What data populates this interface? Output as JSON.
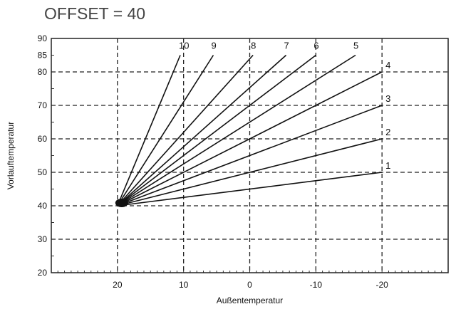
{
  "chart_data": {
    "type": "line",
    "title": "OFFSET = 40",
    "xlabel": "Außentemperatur",
    "ylabel": "Vorlauftemperatur",
    "x_reversed": true,
    "xlim": [
      30,
      -30
    ],
    "ylim": [
      20,
      90
    ],
    "x_ticks": [
      20,
      10,
      0,
      -10,
      -20
    ],
    "x_tick_labels": [
      "20",
      "10",
      "0",
      "-10",
      "-20"
    ],
    "y_ticks": [
      20,
      30,
      40,
      50,
      60,
      70,
      80,
      85,
      90
    ],
    "y_tick_labels": [
      "20",
      "30",
      "40",
      "50",
      "60",
      "70",
      "80",
      "85",
      "90"
    ],
    "grid": "dashed at x = 20, 10, 0, -10, -20 and y = 30, 40, 50, 60, 70, 80",
    "series": [
      {
        "name": "1",
        "x": [
          20,
          -20
        ],
        "y": [
          40,
          50
        ]
      },
      {
        "name": "2",
        "x": [
          20,
          -20
        ],
        "y": [
          40,
          60
        ]
      },
      {
        "name": "3",
        "x": [
          20,
          -20
        ],
        "y": [
          40,
          70
        ]
      },
      {
        "name": "4",
        "x": [
          20,
          -20
        ],
        "y": [
          40,
          80
        ]
      },
      {
        "name": "5",
        "x": [
          20,
          -16
        ],
        "y": [
          40,
          85
        ]
      },
      {
        "name": "6",
        "x": [
          20,
          -10
        ],
        "y": [
          40,
          85
        ]
      },
      {
        "name": "7",
        "x": [
          20,
          -5.5
        ],
        "y": [
          40,
          85
        ]
      },
      {
        "name": "8",
        "x": [
          20,
          -0.5
        ],
        "y": [
          40,
          85
        ]
      },
      {
        "name": "9",
        "x": [
          20,
          5.5
        ],
        "y": [
          40,
          85
        ]
      },
      {
        "name": "10",
        "x": [
          20,
          10.5
        ],
        "y": [
          40,
          85
        ]
      }
    ]
  }
}
